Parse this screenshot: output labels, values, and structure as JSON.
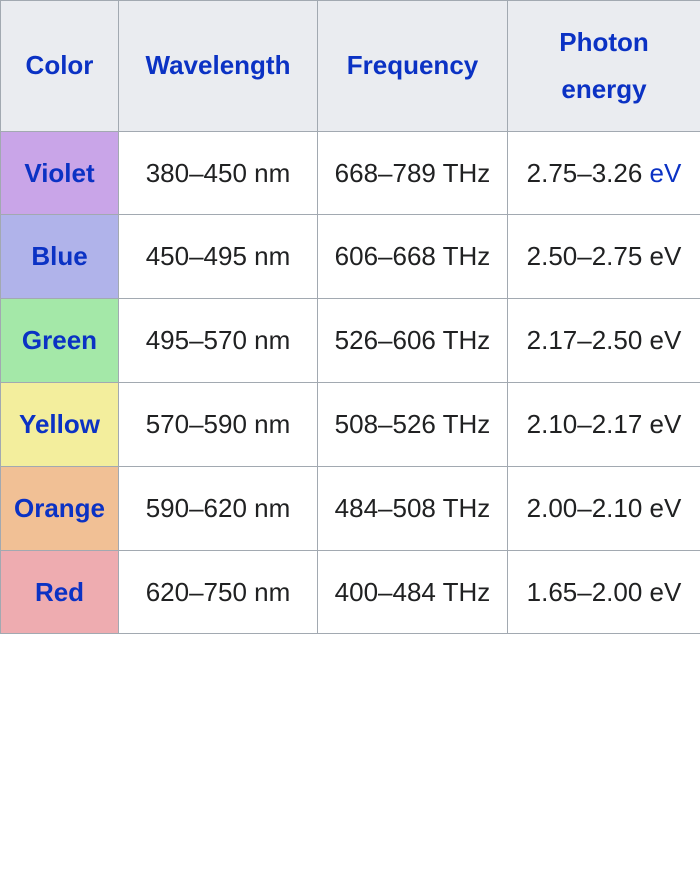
{
  "header_bg": "#eaecf0",
  "header_text_color": "#0b32c4",
  "data_text_color": "#202122",
  "columns": [
    "Color",
    "Wavelength",
    "Frequency",
    "Photon energy"
  ],
  "ev_link_text": "eV",
  "rows": [
    {
      "name": "Violet",
      "color_bg": "#c9a5e8",
      "wavelength": "380–450 nm",
      "frequency": "668–789 THz",
      "energy_prefix": "2.75–3.26 ",
      "energy_ev_is_link": true
    },
    {
      "name": "Blue",
      "color_bg": "#b0b3ea",
      "wavelength": "450–495 nm",
      "frequency": "606–668 THz",
      "energy_prefix": "2.50–2.75 eV",
      "energy_ev_is_link": false
    },
    {
      "name": "Green",
      "color_bg": "#a4e8a8",
      "wavelength": "495–570 nm",
      "frequency": "526–606 THz",
      "energy_prefix": "2.17–2.50 eV",
      "energy_ev_is_link": false
    },
    {
      "name": "Yellow",
      "color_bg": "#f3ee9d",
      "wavelength": "570–590 nm",
      "frequency": "508–526 THz",
      "energy_prefix": "2.10–2.17 eV",
      "energy_ev_is_link": false
    },
    {
      "name": "Orange",
      "color_bg": "#f1c095",
      "wavelength": "590–620 nm",
      "frequency": "484–508 THz",
      "energy_prefix": "2.00–2.10 eV",
      "energy_ev_is_link": false
    },
    {
      "name": "Red",
      "color_bg": "#eeacb0",
      "wavelength": "620–750 nm",
      "frequency": "400–484 THz",
      "energy_prefix": "1.65–2.00 eV",
      "energy_ev_is_link": false
    }
  ]
}
